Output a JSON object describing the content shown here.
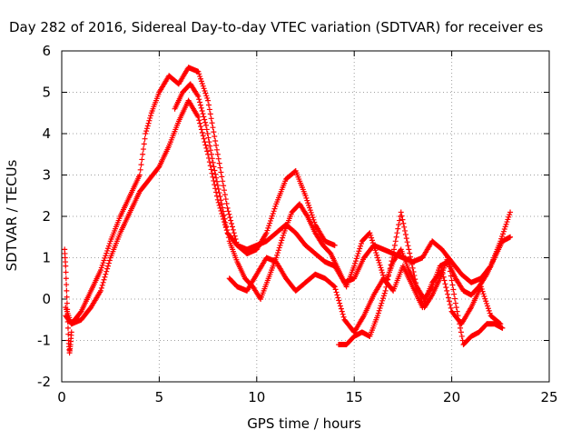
{
  "chart_data": {
    "type": "scatter",
    "title": "Day 282 of 2016, Sidereal Day-to-day VTEC variation (SDTVAR) for receiver es",
    "xlabel": "GPS time / hours",
    "ylabel": "SDTVAR / TECUs",
    "xlim": [
      0,
      25
    ],
    "ylim": [
      -2,
      6
    ],
    "xticks": [
      "0",
      "5",
      "10",
      "15",
      "20",
      "25"
    ],
    "yticks": [
      "-2",
      "-1",
      "0",
      "1",
      "2",
      "3",
      "4",
      "5",
      "6"
    ],
    "grid": true,
    "marker": "+",
    "marker_color": "#ff0000",
    "series": [
      {
        "x": [
          0.2,
          0.5,
          1.0,
          1.5,
          2.0,
          2.5,
          3.0,
          3.5,
          4.0,
          4.5,
          5.0,
          5.5,
          6.0,
          6.5,
          7.0,
          7.5,
          8.0,
          8.5,
          9.0,
          9.5,
          10.0,
          10.5,
          11.0,
          11.5,
          12.0,
          12.5,
          13.0,
          13.5,
          14.0,
          14.5,
          15.0,
          15.5,
          16.0,
          16.5,
          17.0,
          17.5,
          18.0,
          18.5,
          19.0,
          19.5,
          20.0,
          20.5,
          21.0,
          21.5,
          22.0,
          22.5,
          23.0
        ],
        "y": [
          -0.4,
          -0.6,
          -0.5,
          -0.2,
          0.2,
          1.0,
          1.6,
          2.1,
          2.6,
          2.9,
          3.2,
          3.7,
          4.3,
          4.8,
          4.4,
          3.5,
          2.4,
          1.6,
          1.3,
          1.2,
          1.3,
          1.4,
          1.6,
          1.8,
          1.6,
          1.3,
          1.1,
          0.9,
          0.8,
          0.4,
          0.5,
          1.0,
          1.3,
          1.2,
          1.1,
          1.0,
          0.9,
          1.0,
          1.4,
          1.2,
          0.9,
          0.6,
          0.4,
          0.5,
          0.8,
          1.4,
          2.1
        ]
      },
      {
        "x": [
          0.2,
          0.5,
          1.0,
          1.5,
          2.0,
          2.5,
          3.0,
          3.5,
          4.0,
          4.3,
          4.6,
          5.0,
          5.5,
          6.0,
          6.5,
          7.0,
          7.5,
          8.0,
          8.5,
          9.0,
          9.5,
          10.0,
          10.5,
          11.0,
          11.5,
          12.0,
          12.5,
          13.0,
          13.5,
          14.0
        ],
        "y": [
          -0.2,
          -0.6,
          -0.3,
          0.2,
          0.7,
          1.4,
          2.0,
          2.5,
          3.0,
          4.0,
          4.5,
          5.0,
          5.4,
          5.2,
          5.6,
          5.5,
          4.8,
          3.5,
          2.2,
          1.3,
          1.1,
          1.2,
          1.6,
          2.3,
          2.9,
          3.1,
          2.5,
          1.8,
          1.4,
          1.3
        ]
      },
      {
        "x": [
          5.8,
          6.2,
          6.6,
          7.0,
          7.4,
          7.8,
          8.2,
          8.6,
          9.0,
          9.4,
          9.8,
          10.2,
          10.6,
          11.0,
          11.4,
          11.8,
          12.2,
          12.6,
          13.0,
          13.4,
          13.8,
          14.2,
          14.6,
          15.0,
          15.4,
          15.8,
          16.2,
          16.6,
          17.0,
          17.4,
          17.8,
          18.2,
          18.6,
          19.0,
          19.4,
          19.8,
          20.2,
          20.6,
          21.0,
          21.4,
          21.8,
          22.2,
          22.6,
          23.0
        ],
        "y": [
          4.6,
          5.0,
          5.2,
          4.9,
          4.2,
          3.2,
          2.3,
          1.4,
          0.9,
          0.5,
          0.3,
          0.0,
          0.5,
          1.0,
          1.6,
          2.1,
          2.3,
          2.0,
          1.6,
          1.3,
          1.1,
          0.7,
          0.3,
          0.8,
          1.4,
          1.6,
          1.0,
          0.4,
          0.9,
          1.2,
          0.7,
          0.3,
          0.0,
          0.3,
          0.8,
          0.9,
          0.5,
          0.2,
          0.1,
          0.3,
          0.6,
          1.0,
          1.4,
          1.5
        ]
      },
      {
        "x": [
          8.6,
          9.0,
          9.5,
          10.0,
          10.5,
          11.0,
          11.5,
          12.0,
          12.5,
          13.0,
          13.5,
          14.0,
          14.5,
          15.0,
          15.5,
          16.0,
          16.5,
          17.0,
          17.5,
          18.0,
          18.5,
          19.0,
          19.5,
          20.0,
          20.5,
          21.0,
          21.5,
          22.0,
          22.5
        ],
        "y": [
          0.5,
          0.3,
          0.2,
          0.6,
          1.0,
          0.9,
          0.5,
          0.2,
          0.4,
          0.6,
          0.5,
          0.3,
          -0.5,
          -0.8,
          -0.4,
          0.1,
          0.5,
          0.2,
          0.8,
          0.3,
          -0.2,
          0.4,
          0.7,
          -0.3,
          -0.6,
          -0.2,
          0.3,
          -0.4,
          -0.6
        ]
      },
      {
        "x": [
          14.2,
          14.6,
          15.0,
          15.4,
          15.8,
          16.2,
          16.6,
          17.0,
          17.4,
          17.8,
          18.2,
          18.6,
          19.0,
          19.4,
          19.8,
          20.2,
          20.6,
          21.0,
          21.4,
          21.8,
          22.2,
          22.6
        ],
        "y": [
          -1.1,
          -1.1,
          -0.9,
          -0.8,
          -0.9,
          -0.4,
          0.2,
          1.1,
          2.1,
          1.2,
          0.3,
          -0.2,
          0.1,
          0.5,
          1.0,
          -0.1,
          -1.1,
          -0.9,
          -0.8,
          -0.6,
          -0.6,
          -0.7
        ]
      },
      {
        "x": [
          0.15,
          0.2,
          0.25,
          0.3,
          0.35,
          0.4,
          0.45,
          0.5
        ],
        "y": [
          1.2,
          0.8,
          0.2,
          -0.4,
          -1.0,
          -1.3,
          -1.1,
          -0.8
        ]
      }
    ]
  }
}
